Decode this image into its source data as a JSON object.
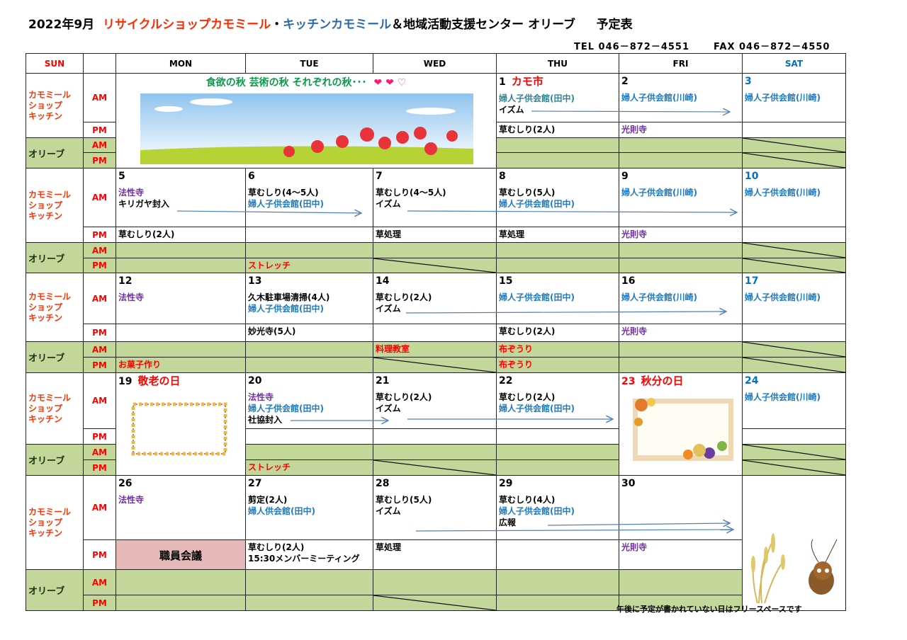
{
  "title": {
    "date": "2022年9月",
    "shop": "リサイクルショップカモミール",
    "dot": "・",
    "kitchen": "キッチンカモミール",
    "rest": "＆地域活動支援センター オリーブ",
    "suffix": "予定表"
  },
  "contact": {
    "tel": "TEL 046－872－4551",
    "fax": "FAX 046－872－4550"
  },
  "header": {
    "sun": "SUN",
    "mon": "MON",
    "tue": "TUE",
    "wed": "WED",
    "thu": "THU",
    "fri": "FRI",
    "sat": "SAT"
  },
  "labels": {
    "kamomile": [
      "カモミール",
      "ショップ",
      "キッチン"
    ],
    "olive": "オリーブ",
    "am": "AM",
    "pm": "PM"
  },
  "banner": {
    "text": "食欲の秋  芸術の秋  それぞれの秋･･･",
    "hearts": "❤ ❤ ♡"
  },
  "weeks": [
    {
      "thu": {
        "date": "1",
        "note": "カモ市",
        "am": [
          {
            "t": "婦人子供会館(田中)",
            "c": "t"
          },
          {
            "t": "イズム",
            "c": "k"
          }
        ],
        "pm": [
          {
            "t": "草むしり(2人)",
            "c": "k"
          }
        ]
      },
      "fri": {
        "date": "2",
        "am": [
          {
            "t": "婦人子供会館(川崎)",
            "c": "b"
          }
        ],
        "pm": [
          {
            "t": "光則寺",
            "c": "p"
          }
        ]
      },
      "sat": {
        "date": "3",
        "am": [
          {
            "t": "婦人子供会館(川崎)",
            "c": "b"
          }
        ]
      }
    },
    {
      "mon": {
        "date": "5",
        "am": [
          {
            "t": "法性寺",
            "c": "p"
          },
          {
            "t": "キリガヤ封入",
            "c": "k"
          }
        ],
        "pm": [
          {
            "t": "草むしり(2人)",
            "c": "k"
          }
        ]
      },
      "tue": {
        "date": "6",
        "am": [
          {
            "t": "草むしり(4～5人)",
            "c": "k"
          },
          {
            "t": "婦人子供会館(田中)",
            "c": "b"
          }
        ],
        "olive_pm": [
          {
            "t": "ストレッチ",
            "c": "r"
          }
        ]
      },
      "wed": {
        "date": "7",
        "am": [
          {
            "t": "草むしり(4～5人)",
            "c": "k"
          },
          {
            "t": "イズム",
            "c": "k"
          }
        ],
        "pm": [
          {
            "t": "草処理",
            "c": "k"
          }
        ]
      },
      "thu": {
        "date": "8",
        "am": [
          {
            "t": "草むしり(5人)",
            "c": "k"
          },
          {
            "t": "婦人子供会館(田中)",
            "c": "b"
          }
        ],
        "pm": [
          {
            "t": "草処理",
            "c": "k"
          }
        ]
      },
      "fri": {
        "date": "9",
        "am": [
          {
            "t": "婦人子供会館(川崎)",
            "c": "b"
          }
        ],
        "pm": [
          {
            "t": "光則寺",
            "c": "p"
          }
        ]
      },
      "sat": {
        "date": "10",
        "am": [
          {
            "t": "婦人子供会館(川崎)",
            "c": "b"
          }
        ]
      }
    },
    {
      "mon": {
        "date": "12",
        "am": [
          {
            "t": "法性寺",
            "c": "p"
          }
        ],
        "olive_pm": [
          {
            "t": "お菓子作り",
            "c": "r"
          }
        ]
      },
      "tue": {
        "date": "13",
        "am": [
          {
            "t": "久木駐車場清掃(4人)",
            "c": "k"
          },
          {
            "t": "婦人子供会館(田中)",
            "c": "b"
          }
        ],
        "pm": [
          {
            "t": "妙光寺(5人)",
            "c": "k"
          }
        ]
      },
      "wed": {
        "date": "14",
        "am": [
          {
            "t": "草むしり(2人)",
            "c": "k"
          },
          {
            "t": "イズム",
            "c": "k"
          }
        ],
        "olive_am": [
          {
            "t": "料理教室",
            "c": "r"
          }
        ]
      },
      "thu": {
        "date": "15",
        "am": [
          {
            "t": "婦人子供会館(田中)",
            "c": "b"
          }
        ],
        "pm": [
          {
            "t": "草むしり(2人)",
            "c": "k"
          }
        ],
        "olive_am": [
          {
            "t": "布ぞうり",
            "c": "r"
          }
        ],
        "olive_pm": [
          {
            "t": "布ぞうり",
            "c": "r"
          }
        ]
      },
      "fri": {
        "date": "16",
        "am": [
          {
            "t": "婦人子供会館(川崎)",
            "c": "b"
          }
        ],
        "pm": [
          {
            "t": "光則寺",
            "c": "p"
          }
        ]
      },
      "sat": {
        "date": "17",
        "am": [
          {
            "t": "婦人子供会館(川崎)",
            "c": "b"
          }
        ]
      }
    },
    {
      "mon": {
        "date": "19",
        "note": "敬老の日"
      },
      "tue": {
        "date": "20",
        "am": [
          {
            "t": "法性寺",
            "c": "p"
          },
          {
            "t": "婦人子供会館(田中)",
            "c": "b"
          },
          {
            "t": "社協封入",
            "c": "k"
          }
        ],
        "olive_pm": [
          {
            "t": "ストレッチ",
            "c": "r"
          }
        ]
      },
      "wed": {
        "date": "21",
        "am": [
          {
            "t": "草むしり(2人)",
            "c": "k"
          },
          {
            "t": "イズム",
            "c": "k"
          }
        ]
      },
      "thu": {
        "date": "22",
        "am": [
          {
            "t": "草むしり(2人)",
            "c": "k"
          },
          {
            "t": "婦人子供会館(田中)",
            "c": "b"
          }
        ]
      },
      "fri": {
        "date": "23",
        "note": "秋分の日"
      },
      "sat": {
        "date": "24",
        "am": [
          {
            "t": "婦人子供会館(川崎)",
            "c": "b"
          }
        ]
      }
    },
    {
      "mon": {
        "date": "26",
        "am": [
          {
            "t": "法性寺",
            "c": "p"
          }
        ],
        "pm": [
          {
            "t": "職員会議",
            "c": "meet"
          }
        ]
      },
      "tue": {
        "date": "27",
        "am": [
          {
            "t": "剪定(2人)",
            "c": "k"
          },
          {
            "t": "婦人供会館(田中)",
            "c": "b"
          }
        ],
        "pm": [
          {
            "t": "草むしり(2人)",
            "c": "k"
          },
          {
            "t": "15:30メンバーミーティング",
            "c": "k"
          }
        ]
      },
      "wed": {
        "date": "28",
        "am": [
          {
            "t": "草むしり(5人)",
            "c": "k"
          },
          {
            "t": "イズム",
            "c": "k"
          }
        ],
        "pm": [
          {
            "t": "草処理",
            "c": "k"
          }
        ]
      },
      "thu": {
        "date": "29",
        "am": [
          {
            "t": "草むしり(4人)",
            "c": "k"
          },
          {
            "t": "婦人子供会館(田中)",
            "c": "b"
          },
          {
            "t": "広報",
            "c": "k"
          }
        ]
      },
      "fri": {
        "date": "30",
        "pm": [
          {
            "t": "光則寺",
            "c": "p"
          }
        ]
      }
    }
  ],
  "footer_note": "午後に予定が書かれていない日はフリースペースです",
  "colors": {
    "olive_bg": "#c4d79b",
    "meeting_bg": "#e6b8b7",
    "saturday": "#0070c0",
    "sunday_holiday": "#ff0000",
    "facility": "#1f7bc1",
    "temple": "#7030a0",
    "arrow": "#4f81bd"
  }
}
